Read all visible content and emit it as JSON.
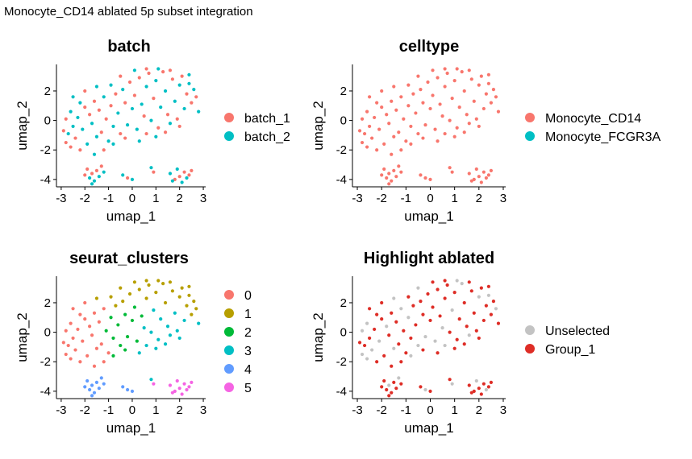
{
  "figure_title": "Monocyte_CD14 ablated 5p subset integration",
  "chart_data": [
    {
      "type": "scatter",
      "title": "batch",
      "xlabel": "umap_1",
      "ylabel": "umap_2",
      "xlim": [
        -3.2,
        3.1
      ],
      "ylim": [
        -4.5,
        3.8
      ],
      "xticks": [
        -3,
        -2,
        -1,
        0,
        1,
        2,
        3
      ],
      "yticks": [
        -4,
        -2,
        0,
        2
      ],
      "color_by": "batch",
      "legend_position": "right",
      "series": [
        {
          "name": "batch_1",
          "color": "#F8766D"
        },
        {
          "name": "batch_2",
          "color": "#00BFC4"
        }
      ]
    },
    {
      "type": "scatter",
      "title": "celltype",
      "xlabel": "umap_1",
      "ylabel": "umap_2",
      "xlim": [
        -3.2,
        3.1
      ],
      "ylim": [
        -4.5,
        3.8
      ],
      "xticks": [
        -3,
        -2,
        -1,
        0,
        1,
        2,
        3
      ],
      "yticks": [
        -4,
        -2,
        0,
        2
      ],
      "color_by": "celltype",
      "legend_position": "right",
      "series": [
        {
          "name": "Monocyte_CD14",
          "color": "#F8766D"
        },
        {
          "name": "Monocyte_FCGR3A",
          "color": "#00BFC4"
        }
      ]
    },
    {
      "type": "scatter",
      "title": "seurat_clusters",
      "xlabel": "umap_1",
      "ylabel": "umap_2",
      "xlim": [
        -3.2,
        3.1
      ],
      "ylim": [
        -4.5,
        3.8
      ],
      "xticks": [
        -3,
        -2,
        -1,
        0,
        1,
        2,
        3
      ],
      "yticks": [
        -4,
        -2,
        0,
        2
      ],
      "color_by": "cluster",
      "legend_position": "right",
      "series": [
        {
          "name": "0",
          "color": "#F8766D"
        },
        {
          "name": "1",
          "color": "#B79F00"
        },
        {
          "name": "2",
          "color": "#00BA38"
        },
        {
          "name": "3",
          "color": "#00BFC4"
        },
        {
          "name": "4",
          "color": "#619CFF"
        },
        {
          "name": "5",
          "color": "#F564E3"
        }
      ]
    },
    {
      "type": "scatter",
      "title": "Highlight ablated",
      "xlabel": "umap_1",
      "ylabel": "umap_2",
      "xlim": [
        -3.2,
        3.1
      ],
      "ylim": [
        -4.5,
        3.8
      ],
      "xticks": [
        -3,
        -2,
        -1,
        0,
        1,
        2,
        3
      ],
      "yticks": [
        -4,
        -2,
        0,
        2
      ],
      "color_by": "highlight",
      "legend_position": "right",
      "series": [
        {
          "name": "Unselected",
          "color": "#C3C3C3"
        },
        {
          "name": "Group_1",
          "color": "#DE2D26"
        }
      ]
    }
  ],
  "cells": [
    [
      -2.8,
      -1.5,
      0,
      0,
      0,
      0
    ],
    [
      -2.7,
      -0.9,
      1,
      0,
      0,
      1
    ],
    [
      -2.6,
      -1.8,
      0,
      0,
      0,
      0
    ],
    [
      -2.5,
      -0.4,
      1,
      0,
      0,
      1
    ],
    [
      -2.4,
      -1.2,
      0,
      0,
      0,
      0
    ],
    [
      -2.3,
      0.2,
      1,
      0,
      0,
      1
    ],
    [
      -2.2,
      -2.0,
      0,
      0,
      0,
      1
    ],
    [
      -2.1,
      -0.6,
      1,
      0,
      0,
      0
    ],
    [
      -2.0,
      0.9,
      0,
      0,
      0,
      1
    ],
    [
      -1.9,
      -1.6,
      1,
      0,
      0,
      1
    ],
    [
      -1.8,
      0.4,
      0,
      0,
      0,
      0
    ],
    [
      -1.7,
      -0.2,
      1,
      0,
      0,
      1
    ],
    [
      -1.6,
      1.3,
      0,
      0,
      0,
      1
    ],
    [
      -1.5,
      -1.1,
      1,
      0,
      0,
      0
    ],
    [
      -1.4,
      0.7,
      0,
      0,
      0,
      1
    ],
    [
      -2.6,
      0.6,
      1,
      0,
      0,
      0
    ],
    [
      -2.9,
      -0.7,
      0,
      0,
      0,
      1
    ],
    [
      -2.2,
      1.2,
      1,
      0,
      0,
      1
    ],
    [
      -1.3,
      -0.8,
      0,
      0,
      0,
      1
    ],
    [
      -1.2,
      1.6,
      1,
      0,
      0,
      0
    ],
    [
      -1.1,
      0.1,
      0,
      2,
      0,
      1
    ],
    [
      -1.0,
      -1.4,
      1,
      0,
      0,
      1
    ],
    [
      -0.9,
      1.0,
      0,
      2,
      0,
      0
    ],
    [
      -0.8,
      -0.4,
      1,
      2,
      0,
      1
    ],
    [
      -0.7,
      1.8,
      0,
      1,
      0,
      1
    ],
    [
      -0.6,
      0.5,
      1,
      2,
      0,
      1
    ],
    [
      -0.5,
      -0.9,
      0,
      2,
      0,
      0
    ],
    [
      -0.4,
      2.1,
      1,
      1,
      0,
      1
    ],
    [
      -0.3,
      1.2,
      0,
      2,
      0,
      1
    ],
    [
      -0.2,
      -0.3,
      1,
      2,
      0,
      0
    ],
    [
      -0.1,
      2.6,
      0,
      1,
      0,
      1
    ],
    [
      0.0,
      0.8,
      1,
      2,
      0,
      1
    ],
    [
      0.1,
      1.7,
      0,
      2,
      0,
      1
    ],
    [
      0.2,
      -0.6,
      1,
      2,
      0,
      0
    ],
    [
      0.3,
      2.9,
      0,
      1,
      0,
      1
    ],
    [
      0.4,
      1.1,
      1,
      2,
      0,
      1
    ],
    [
      0.5,
      0.3,
      0,
      3,
      0,
      0
    ],
    [
      0.6,
      2.3,
      1,
      1,
      0,
      1
    ],
    [
      0.7,
      3.2,
      0,
      1,
      0,
      1
    ],
    [
      0.8,
      0.0,
      1,
      3,
      0,
      1
    ],
    [
      0.9,
      1.5,
      0,
      3,
      0,
      0
    ],
    [
      1.0,
      2.7,
      1,
      1,
      0,
      1
    ],
    [
      1.1,
      -0.5,
      0,
      3,
      0,
      1
    ],
    [
      1.2,
      0.9,
      1,
      3,
      0,
      1
    ],
    [
      1.3,
      3.3,
      0,
      1,
      0,
      0
    ],
    [
      1.4,
      2.0,
      1,
      1,
      0,
      1
    ],
    [
      1.5,
      0.4,
      0,
      3,
      0,
      1
    ],
    [
      1.6,
      -0.2,
      1,
      3,
      0,
      0
    ],
    [
      1.7,
      2.8,
      0,
      1,
      0,
      1
    ],
    [
      1.8,
      1.3,
      1,
      3,
      0,
      1
    ],
    [
      1.9,
      0.1,
      0,
      3,
      0,
      1
    ],
    [
      2.0,
      2.4,
      1,
      1,
      0,
      0
    ],
    [
      2.1,
      3.0,
      0,
      1,
      0,
      1
    ],
    [
      2.2,
      0.8,
      1,
      3,
      0,
      1
    ],
    [
      2.3,
      1.8,
      0,
      1,
      0,
      1
    ],
    [
      2.4,
      2.5,
      1,
      1,
      0,
      0
    ],
    [
      2.5,
      1.2,
      0,
      1,
      0,
      1
    ],
    [
      2.6,
      2.1,
      1,
      1,
      0,
      1
    ],
    [
      -2.0,
      2.0,
      0,
      0,
      0,
      1
    ],
    [
      -1.5,
      2.3,
      1,
      1,
      0,
      0
    ],
    [
      -1.9,
      -3.3,
      0,
      4,
      0,
      1
    ],
    [
      -1.8,
      -3.9,
      1,
      4,
      0,
      1
    ],
    [
      -1.7,
      -3.6,
      0,
      4,
      0,
      0
    ],
    [
      -1.6,
      -4.1,
      1,
      4,
      0,
      1
    ],
    [
      -1.5,
      -3.4,
      0,
      4,
      0,
      1
    ],
    [
      -1.4,
      -3.8,
      1,
      4,
      0,
      1
    ],
    [
      -1.3,
      -3.1,
      0,
      4,
      0,
      0
    ],
    [
      -1.7,
      -4.3,
      1,
      4,
      0,
      1
    ],
    [
      -2.0,
      -3.7,
      0,
      4,
      0,
      1
    ],
    [
      -1.2,
      -3.5,
      1,
      4,
      0,
      1
    ],
    [
      -0.4,
      -3.7,
      1,
      4,
      0,
      1
    ],
    [
      -0.2,
      -3.9,
      0,
      4,
      0,
      0
    ],
    [
      0.0,
      -4.0,
      1,
      4,
      0,
      1
    ],
    [
      1.6,
      -3.6,
      1,
      5,
      0,
      1
    ],
    [
      1.8,
      -4.0,
      0,
      5,
      0,
      1
    ],
    [
      1.9,
      -3.3,
      1,
      5,
      0,
      0
    ],
    [
      2.0,
      -3.8,
      0,
      5,
      0,
      1
    ],
    [
      2.1,
      -4.2,
      1,
      5,
      0,
      1
    ],
    [
      2.2,
      -3.5,
      0,
      5,
      0,
      1
    ],
    [
      2.3,
      -3.9,
      1,
      5,
      0,
      0
    ],
    [
      2.4,
      -3.7,
      0,
      5,
      0,
      1
    ],
    [
      1.7,
      -4.1,
      1,
      5,
      0,
      1
    ],
    [
      2.5,
      -3.4,
      0,
      5,
      0,
      1
    ],
    [
      0.8,
      -3.2,
      1,
      3,
      0,
      1
    ],
    [
      0.9,
      -3.5,
      0,
      5,
      0,
      0
    ],
    [
      -2.5,
      1.6,
      1,
      0,
      0,
      1
    ],
    [
      -2.8,
      0.1,
      0,
      0,
      0,
      0
    ],
    [
      -1.6,
      -2.3,
      1,
      0,
      0,
      1
    ],
    [
      -1.2,
      -2.0,
      0,
      0,
      0,
      1
    ],
    [
      -0.8,
      -1.6,
      1,
      2,
      0,
      0
    ],
    [
      -0.3,
      -1.2,
      0,
      2,
      0,
      1
    ],
    [
      0.3,
      -1.4,
      1,
      3,
      0,
      1
    ],
    [
      0.6,
      -0.9,
      0,
      3,
      0,
      0
    ],
    [
      1.0,
      -1.1,
      1,
      3,
      0,
      1
    ],
    [
      1.4,
      -0.8,
      0,
      3,
      0,
      1
    ],
    [
      -0.9,
      2.4,
      1,
      1,
      0,
      1
    ],
    [
      -0.5,
      3.0,
      0,
      1,
      0,
      0
    ],
    [
      0.1,
      3.4,
      1,
      1,
      0,
      1
    ],
    [
      0.6,
      3.5,
      0,
      1,
      0,
      1
    ],
    [
      1.1,
      3.5,
      1,
      1,
      0,
      0
    ],
    [
      1.6,
      3.4,
      0,
      1,
      0,
      1
    ],
    [
      2.4,
      3.1,
      1,
      1,
      0,
      1
    ],
    [
      2.7,
      1.6,
      0,
      1,
      0,
      0
    ],
    [
      2.8,
      0.6,
      1,
      3,
      0,
      1
    ],
    [
      2.0,
      -0.4,
      0,
      3,
      0,
      1
    ]
  ]
}
